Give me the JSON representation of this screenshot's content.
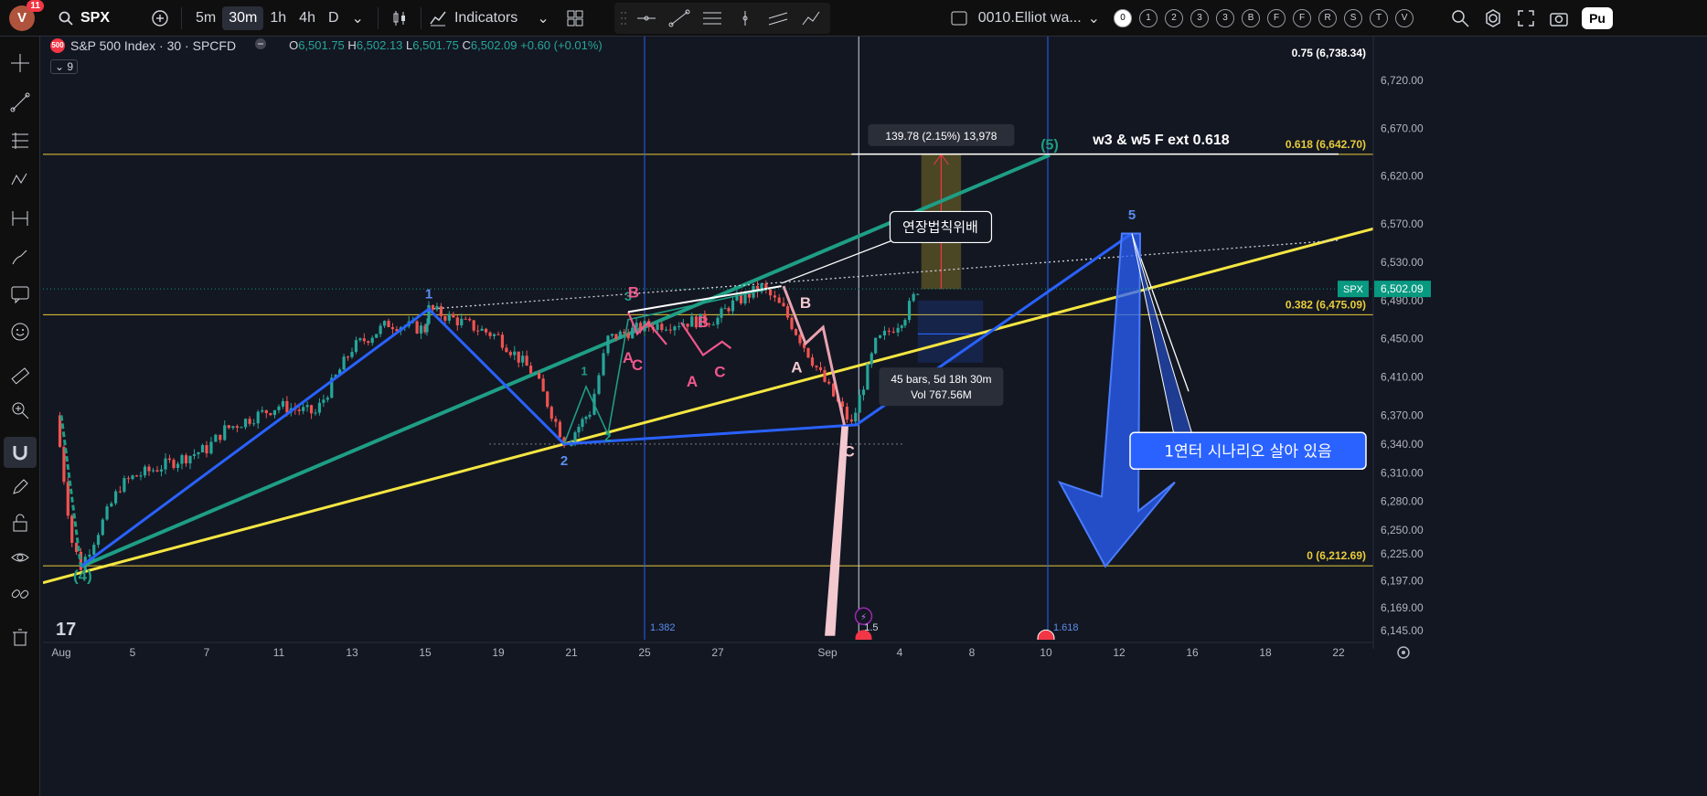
{
  "topbar": {
    "avatar_initial": "V",
    "notif_count": "11",
    "symbol": "SPX",
    "intervals": [
      "5m",
      "30m",
      "1h",
      "4h",
      "D"
    ],
    "active_interval": "30m",
    "indicators_label": "Indicators",
    "layout_name": "0010.Elliot wa...",
    "wave_buttons": [
      "0",
      "1",
      "2",
      "3",
      "3",
      "B",
      "F",
      "F",
      "R",
      "S",
      "T",
      "V"
    ],
    "publish_label": "Pu"
  },
  "legend": {
    "badge": "500",
    "title": "S&P 500 Index · 30 · SPCFD",
    "o_label": "O",
    "o": "6,501.75",
    "h_label": "H",
    "h": "6,502.13",
    "l_label": "L",
    "l": "6,501.75",
    "c_label": "C",
    "c": "6,502.09",
    "change": "+0.60 (+0.01%)",
    "collapse": "9"
  },
  "colors": {
    "background": "#131722",
    "up": "#26a69a",
    "down": "#ef5350",
    "wave_blue": "#2962ff",
    "wave_teal": "#1e9e85",
    "trend_yellow": "#f5e642",
    "fib_line": "#e8cc3a",
    "pink_label": "#f0578d"
  },
  "chart_data": {
    "type": "candlestick",
    "symbol": "SPX",
    "interval": "30",
    "ylim": [
      6145,
      6738.34
    ],
    "price_ticks": [
      "6,720.00",
      "6,670.00",
      "6,620.00",
      "6,570.00",
      "6,530.00",
      "6,490.00",
      "6,450.00",
      "6,410.00",
      "6,370.00",
      "6,340.00",
      "6,310.00",
      "6,280.00",
      "6,250.00",
      "6,225.00",
      "6,197.00",
      "6,169.00",
      "6,145.00"
    ],
    "time_ticks": [
      "Aug",
      "5",
      "7",
      "11",
      "13",
      "15",
      "19",
      "21",
      "25",
      "27",
      "Sep",
      "4",
      "8",
      "10",
      "12",
      "16",
      "18",
      "22"
    ],
    "last_price": {
      "label": "SPX",
      "value": "6,502.09"
    },
    "fib_levels": [
      {
        "ratio": "0.75",
        "price": 6738.34,
        "label": "0.75 (6,738.34)"
      },
      {
        "ratio": "0.618",
        "price": 6642.7,
        "label": "0.618 (6,642.70)"
      },
      {
        "ratio": "0.382",
        "price": 6475.09,
        "label": "0.382 (6,475.09)"
      },
      {
        "ratio": "0",
        "price": 6212.69,
        "label": "0 (6,212.69)"
      }
    ],
    "price_path": [
      [
        "Jul 31",
        6370
      ],
      [
        "Aug 1",
        6238
      ],
      [
        "Aug 1b",
        6212
      ],
      [
        "Aug 4",
        6296
      ],
      [
        "Aug 5",
        6305
      ],
      [
        "Aug 6",
        6335
      ],
      [
        "Aug 7",
        6355
      ],
      [
        "Aug 8",
        6380
      ],
      [
        "Aug 11",
        6372
      ],
      [
        "Aug 12",
        6440
      ],
      [
        "Aug 13",
        6466
      ],
      [
        "Aug 14",
        6460
      ],
      [
        "Aug 15",
        6481
      ],
      [
        "Aug 18",
        6452
      ],
      [
        "Aug 19",
        6412
      ],
      [
        "Aug 20",
        6343
      ],
      [
        "Aug 21",
        6374
      ],
      [
        "Aug 22",
        6450
      ],
      [
        "Aug 25",
        6463
      ],
      [
        "Aug 26",
        6471
      ],
      [
        "Aug 27",
        6484
      ],
      [
        "Aug 28",
        6504
      ],
      [
        "Aug 29",
        6480
      ],
      [
        "Sep 2",
        6360
      ],
      [
        "Sep 3",
        6445
      ],
      [
        "Sep 4",
        6475
      ],
      [
        "Sep 5",
        6502
      ]
    ],
    "price_path_note": "approximate closing path read from candles",
    "measure": {
      "label": "139.78 (2.15%) 13,978",
      "bars_label": "45 bars, 5d 18h 30m",
      "vol_label": "Vol 767.56M"
    },
    "annotations": [
      {
        "text": "w3 & w5 F ext 0.618"
      },
      {
        "text": "연장법칙위배"
      },
      {
        "text": "1연터 시나리오 살아 있음"
      }
    ],
    "wave_labels": {
      "primary": [
        "(4)",
        "1",
        "2",
        "5",
        "(5)"
      ],
      "teal": [
        "3",
        "1",
        "2"
      ],
      "pink": [
        "B",
        "A",
        "C",
        "B",
        "A",
        "C",
        "B",
        "A",
        "C"
      ]
    },
    "vertical_markers": [
      "1.382",
      "1.5",
      "1.618"
    ]
  }
}
